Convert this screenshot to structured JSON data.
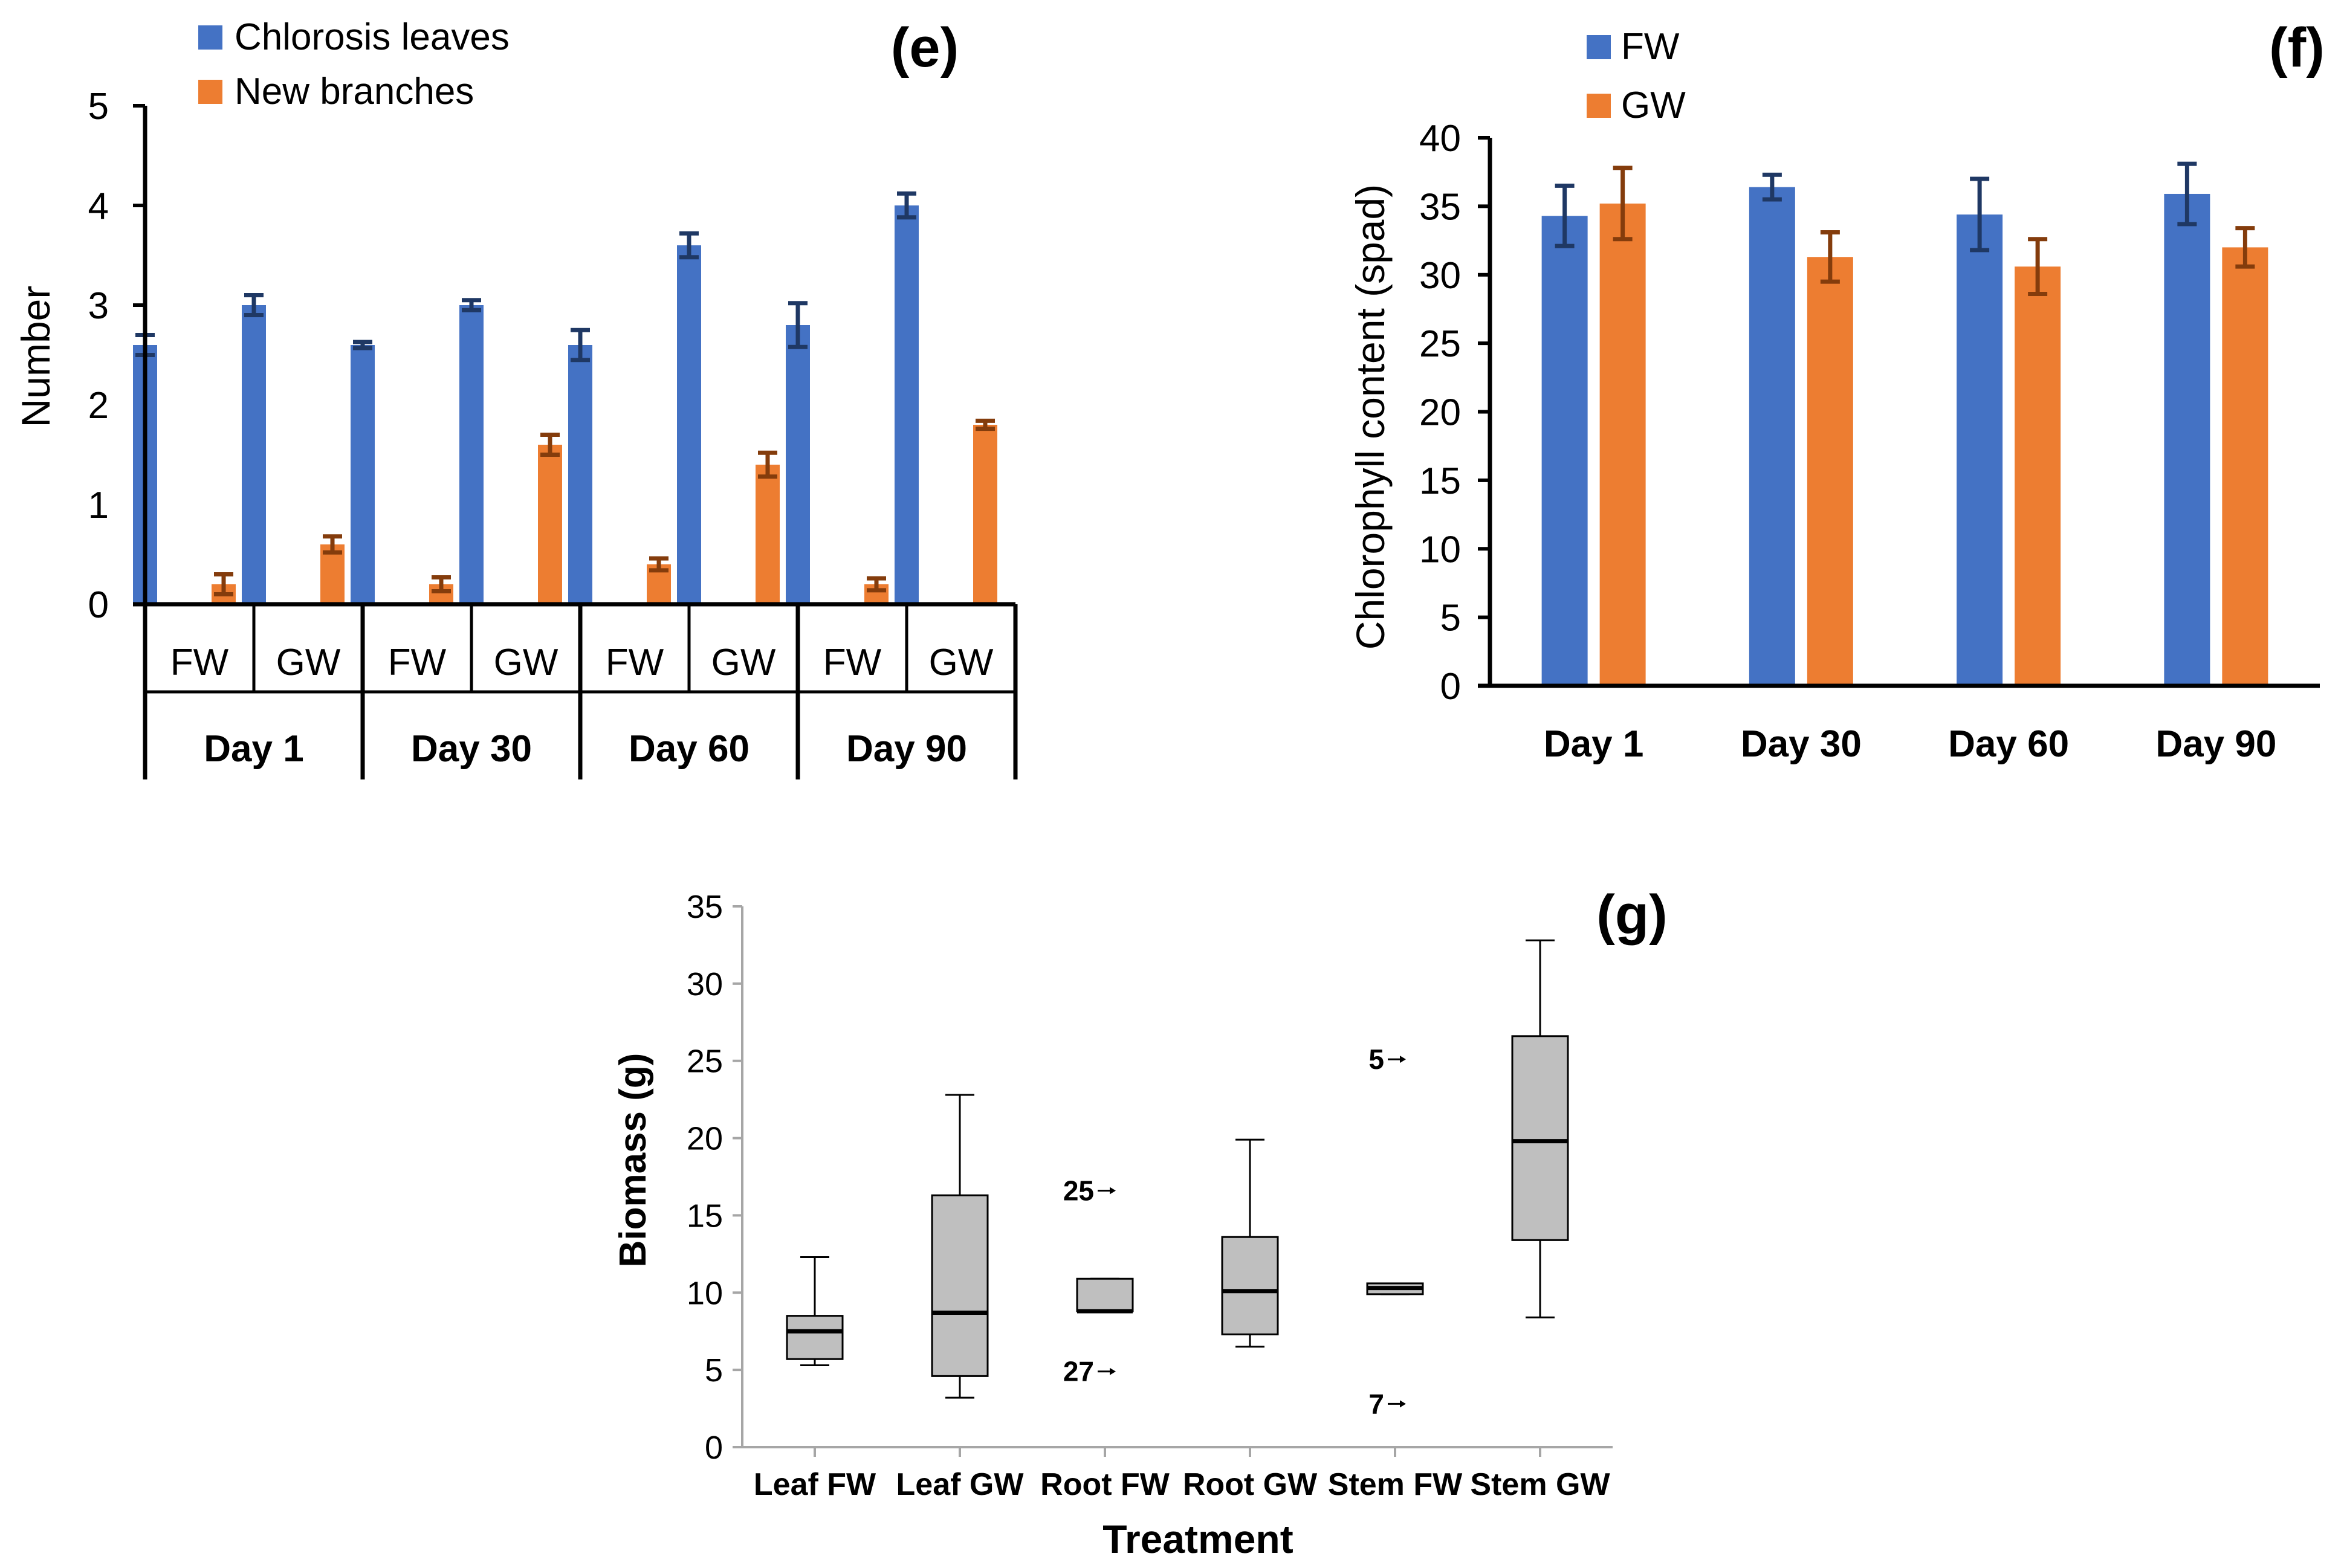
{
  "colors": {
    "fw": "#4472C4",
    "gw": "#ED7D31",
    "fw_err": "#1F3864",
    "gw_err": "#843C0C",
    "box_fill": "#BFBFBF",
    "axis": "#000000",
    "light_axis": "#A6A6A6"
  },
  "chart_data": [
    {
      "panel": "(e)",
      "type": "bar",
      "ylabel": "Number",
      "ylim": [
        0,
        5
      ],
      "yticks": [
        "0",
        "1",
        "2",
        "3",
        "4",
        "5"
      ],
      "legend": [
        "Chlorosis leaves",
        "New branches"
      ],
      "legend_position": "top-left",
      "categories": [
        "FW",
        "GW",
        "FW",
        "GW",
        "FW",
        "GW",
        "FW",
        "GW"
      ],
      "groups": [
        "Day 1",
        "Day 30",
        "Day 60",
        "Day 90"
      ],
      "series": [
        {
          "name": "Chlorosis leaves",
          "values": [
            2.6,
            3.0,
            2.6,
            3.0,
            2.6,
            3.6,
            2.8,
            4.0
          ],
          "errors": [
            0.1,
            0.1,
            0.03,
            0.05,
            0.15,
            0.12,
            0.22,
            0.12
          ]
        },
        {
          "name": "New branches",
          "values": [
            0.2,
            0.6,
            0.2,
            1.6,
            0.4,
            1.4,
            0.2,
            1.8
          ],
          "errors": [
            0.1,
            0.08,
            0.07,
            0.1,
            0.06,
            0.12,
            0.06,
            0.04
          ]
        }
      ]
    },
    {
      "panel": "(f)",
      "type": "bar",
      "ylabel": "Chlorophyll content (spad)",
      "ylim": [
        0,
        40
      ],
      "yticks": [
        "0",
        "5",
        "10",
        "15",
        "20",
        "25",
        "30",
        "35",
        "40"
      ],
      "legend": [
        "FW",
        "GW"
      ],
      "legend_position": "top-left",
      "categories": [
        "Day 1",
        "Day 30",
        "Day 60",
        "Day 90"
      ],
      "series": [
        {
          "name": "FW",
          "values": [
            34.3,
            36.4,
            34.4,
            35.9
          ],
          "errors": [
            2.2,
            0.9,
            2.6,
            2.2
          ]
        },
        {
          "name": "GW",
          "values": [
            35.2,
            31.3,
            30.6,
            32.0
          ],
          "errors": [
            2.6,
            1.8,
            2.0,
            1.4
          ]
        }
      ]
    },
    {
      "panel": "(g)",
      "type": "box",
      "xlabel": "Treatment",
      "ylabel": "Biomass (g)",
      "ylim": [
        0,
        35
      ],
      "yticks": [
        "0",
        "5",
        "10",
        "15",
        "20",
        "25",
        "30",
        "35"
      ],
      "categories": [
        "Leaf FW",
        "Leaf GW",
        "Root FW",
        "Root GW",
        "Stem FW",
        "Stem GW"
      ],
      "boxes": [
        {
          "min": 5.3,
          "q1": 5.7,
          "median": 7.5,
          "q3": 8.5,
          "max": 12.3
        },
        {
          "min": 3.2,
          "q1": 4.6,
          "median": 8.7,
          "q3": 16.3,
          "max": 22.8
        },
        {
          "min": 8.8,
          "q1": 8.8,
          "median": 8.8,
          "q3": 10.9,
          "max": 10.9
        },
        {
          "min": 6.5,
          "q1": 7.3,
          "median": 10.1,
          "q3": 13.6,
          "max": 19.9
        },
        {
          "min": 9.9,
          "q1": 9.9,
          "median": 10.3,
          "q3": 10.6,
          "max": 10.6
        },
        {
          "min": 8.4,
          "q1": 13.4,
          "median": 19.8,
          "q3": 26.6,
          "max": 32.8
        }
      ],
      "outliers": [
        {
          "label": "25",
          "category": "Root FW",
          "value": 16.6
        },
        {
          "label": "27",
          "category": "Root FW",
          "value": 4.9
        },
        {
          "label": "5",
          "category": "Stem FW",
          "value": 25.1
        },
        {
          "label": "7",
          "category": "Stem FW",
          "value": 2.8
        }
      ]
    }
  ]
}
